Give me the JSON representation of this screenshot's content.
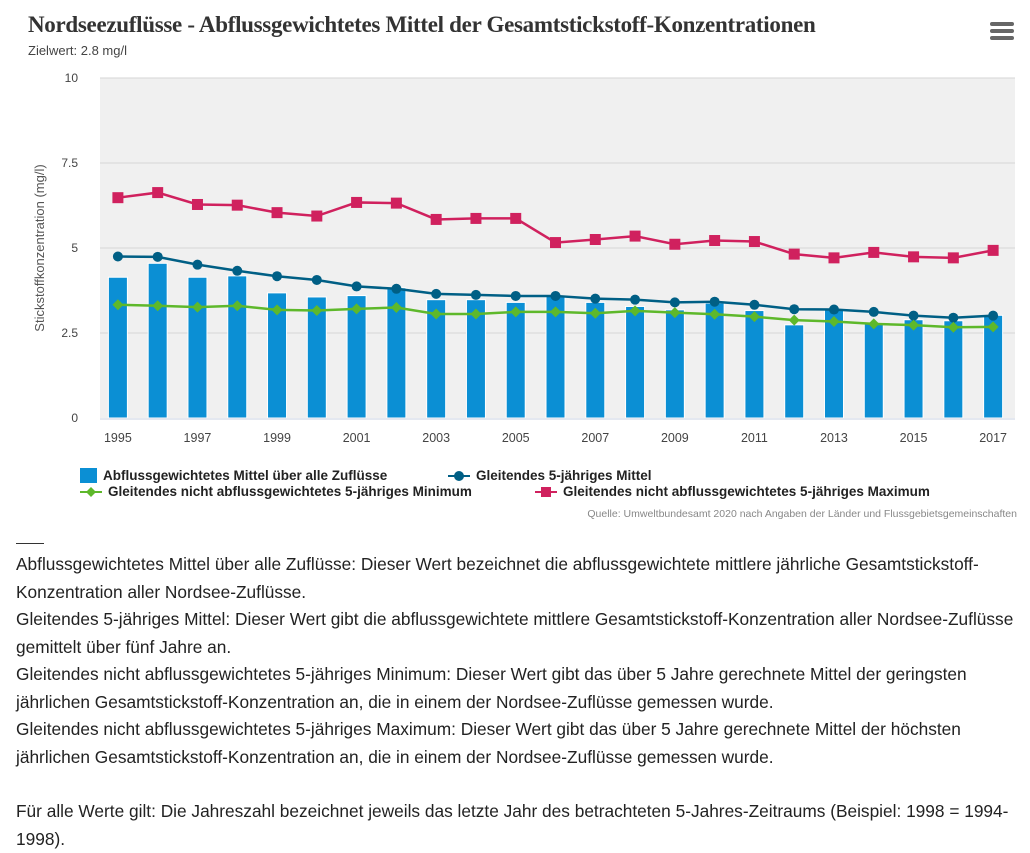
{
  "header": {
    "title": "Nordseezuflüsse - Abflussgewichtetes Mittel der Gesamtstickstoff-Konzentrationen",
    "subtitle": "Zielwert: 2.8 mg/l",
    "menu_icon": "hamburger-menu-icon"
  },
  "chart_data": {
    "type": "bar+line",
    "title": "Nordseezuflüsse - Abflussgewichtetes Mittel der Gesamtstickstoff-Konzentrationen",
    "subtitle": "Zielwert: 2.8 mg/l",
    "ylabel": "Stickstoffkonzentration (mg/l)",
    "xlabel": "",
    "ylim": [
      0,
      10
    ],
    "yticks": [
      {
        "value": 0,
        "label": "0"
      },
      {
        "value": 2.5,
        "label": "2.5"
      },
      {
        "value": 5,
        "label": "5"
      },
      {
        "value": 7.5,
        "label": "7.5"
      },
      {
        "value": 10,
        "label": "10"
      }
    ],
    "grid": true,
    "legend_position": "bottom",
    "categories": [
      1995,
      1996,
      1997,
      1998,
      1999,
      2000,
      2001,
      2002,
      2003,
      2004,
      2005,
      2006,
      2007,
      2008,
      2009,
      2010,
      2011,
      2012,
      2013,
      2014,
      2015,
      2016,
      2017
    ],
    "xtick_labels": [
      "1995",
      "1997",
      "1999",
      "2001",
      "2003",
      "2005",
      "2007",
      "2009",
      "2011",
      "2013",
      "2015",
      "2017"
    ],
    "series": [
      {
        "name": "Abflussgewichtetes Mittel über alle Zuflüsse",
        "type": "bar",
        "color": "#0b8fd4",
        "values": [
          4.14,
          4.55,
          4.14,
          4.18,
          3.68,
          3.56,
          3.6,
          3.83,
          3.48,
          3.48,
          3.4,
          3.58,
          3.4,
          3.28,
          3.18,
          3.38,
          3.16,
          2.74,
          3.18,
          2.79,
          2.89,
          2.86,
          3.02
        ]
      },
      {
        "name": "Gleitendes 5-jähriges Mittel",
        "type": "line",
        "marker": "circle",
        "color": "#005f85",
        "values": [
          4.75,
          4.74,
          4.51,
          4.33,
          4.17,
          4.06,
          3.87,
          3.8,
          3.65,
          3.62,
          3.59,
          3.59,
          3.51,
          3.48,
          3.4,
          3.42,
          3.33,
          3.2,
          3.19,
          3.12,
          3.01,
          2.95,
          3.01
        ]
      },
      {
        "name": "Gleitendes nicht abflussgewichtetes 5-jähriges Minimum",
        "type": "line",
        "marker": "diamond",
        "color": "#5eb82b",
        "values": [
          3.33,
          3.3,
          3.26,
          3.3,
          3.18,
          3.16,
          3.21,
          3.25,
          3.06,
          3.06,
          3.12,
          3.12,
          3.08,
          3.15,
          3.1,
          3.05,
          2.98,
          2.88,
          2.84,
          2.77,
          2.73,
          2.67,
          2.68
        ]
      },
      {
        "name": "Gleitendes nicht abflussgewichtetes 5-jähriges Maximum",
        "type": "line",
        "marker": "square",
        "color": "#d0215e",
        "values": [
          6.48,
          6.63,
          6.28,
          6.26,
          6.04,
          5.94,
          6.34,
          6.32,
          5.84,
          5.87,
          5.87,
          5.16,
          5.25,
          5.35,
          5.11,
          5.22,
          5.19,
          4.82,
          4.71,
          4.87,
          4.74,
          4.71,
          4.93
        ]
      }
    ],
    "source": "Quelle: Umweltbundesamt 2020 nach Angaben der Länder und Flussgebietsgemeinschaften"
  },
  "notes": [
    "Abflussgewichtetes Mittel über alle Zuflüsse: Dieser Wert bezeichnet die abflussgewichtete mittlere jährliche Gesamtstickstoff-Konzentration aller Nordsee-Zuflüsse.",
    "Gleitendes 5-jähriges Mittel: Dieser Wert gibt die abflussgewichtete mittlere Gesamtstickstoff-Konzentration aller Nordsee-Zuflüsse gemittelt über fünf Jahre an.",
    "Gleitendes nicht abflussgewichtetes 5-jähriges Minimum: Dieser Wert gibt das über 5 Jahre gerechnete Mittel der geringsten jährlichen Gesamtstickstoff-Konzentration an, die in einem der Nordsee-Zuflüsse gemessen wurde.",
    "Gleitendes nicht abflussgewichtetes 5-jähriges Maximum: Dieser Wert gibt das über 5 Jahre gerechnete Mittel der höchsten jährlichen Gesamtstickstoff-Konzentration an, die in einem der Nordsee-Zuflüsse gemessen wurde.",
    "",
    "Für alle Werte gilt: Die Jahreszahl bezeichnet jeweils das letzte Jahr des betrachteten 5-Jahres-Zeitraums (Beispiel: 1998 = 1994-1998)."
  ]
}
